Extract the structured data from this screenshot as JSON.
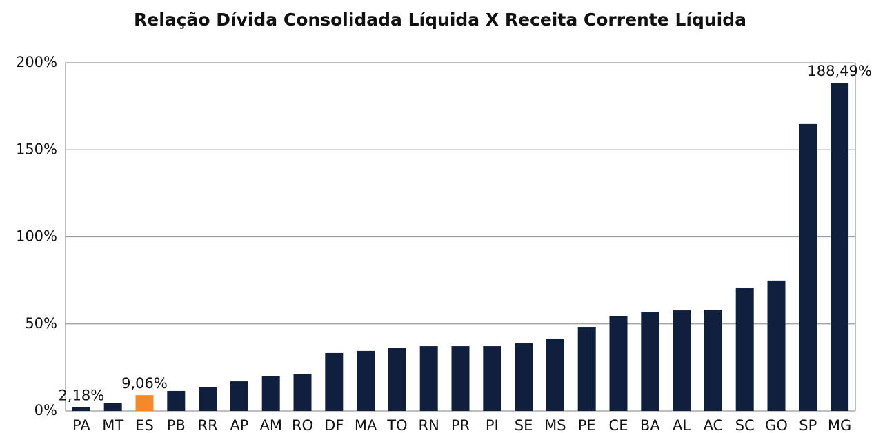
{
  "chart_data": {
    "type": "bar",
    "title": "Relação Dívida Consolidada Líquida X Receita Corrente Líquida",
    "categories": [
      "PA",
      "MT",
      "ES",
      "PB",
      "RR",
      "AP",
      "AM",
      "RO",
      "DF",
      "MA",
      "TO",
      "RN",
      "PR",
      "PI",
      "SE",
      "MS",
      "PE",
      "CE",
      "BA",
      "AL",
      "AC",
      "SC",
      "GO",
      "SP",
      "MG"
    ],
    "values": [
      2.18,
      4.6,
      9.06,
      11.5,
      13.5,
      17,
      19.8,
      21,
      33.3,
      34.5,
      36.4,
      37.2,
      37.2,
      37.2,
      38.8,
      41.6,
      48.3,
      54.3,
      57,
      57.8,
      58.2,
      70.9,
      74.9,
      164.8,
      188.49
    ],
    "value_labels": [
      "2,18%",
      null,
      "9,06%",
      null,
      null,
      null,
      null,
      null,
      null,
      null,
      null,
      null,
      null,
      null,
      null,
      null,
      null,
      null,
      null,
      null,
      null,
      null,
      null,
      null,
      "188,49%"
    ],
    "colors": [
      "#0f1f3d",
      "#0f1f3d",
      "#f5892a",
      "#0f1f3d",
      "#0f1f3d",
      "#0f1f3d",
      "#0f1f3d",
      "#0f1f3d",
      "#0f1f3d",
      "#0f1f3d",
      "#0f1f3d",
      "#0f1f3d",
      "#0f1f3d",
      "#0f1f3d",
      "#0f1f3d",
      "#0f1f3d",
      "#0f1f3d",
      "#0f1f3d",
      "#0f1f3d",
      "#0f1f3d",
      "#0f1f3d",
      "#0f1f3d",
      "#0f1f3d",
      "#0f1f3d",
      "#0f1f3d"
    ],
    "ylim": [
      0,
      200
    ],
    "yticks": [
      {
        "value": 0,
        "label": "0%"
      },
      {
        "value": 50,
        "label": "50%"
      },
      {
        "value": 100,
        "label": "100%"
      },
      {
        "value": 150,
        "label": "150%"
      },
      {
        "value": 200,
        "label": "200%"
      }
    ],
    "grid": true
  }
}
